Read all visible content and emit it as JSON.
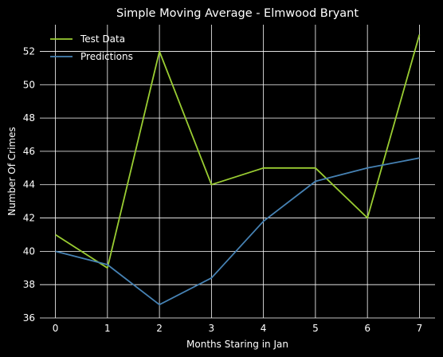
{
  "chart_data": {
    "type": "line",
    "title": "Simple Moving Average - Elmwood Bryant",
    "xlabel": "Months Staring in Jan",
    "ylabel": "Number Of Crimes",
    "x": [
      0,
      1,
      2,
      3,
      4,
      5,
      6,
      7
    ],
    "xlim": [
      -0.3,
      7.3
    ],
    "ylim": [
      36,
      53.6
    ],
    "yticks": [
      36,
      38,
      40,
      42,
      44,
      46,
      48,
      50,
      52
    ],
    "xticks": [
      0,
      1,
      2,
      3,
      4,
      5,
      6,
      7
    ],
    "grid": true,
    "legend_position": "top-left",
    "background": "#000000",
    "grid_color": "#ffffff",
    "series": [
      {
        "name": "Test Data",
        "color": "#9acd32",
        "values": [
          41,
          39,
          52,
          44,
          45,
          45,
          42,
          53
        ]
      },
      {
        "name": "Predictions",
        "color": "#4682b4",
        "values": [
          40,
          39.2,
          36.8,
          38.4,
          41.8,
          44.2,
          45,
          45.6
        ]
      }
    ]
  }
}
